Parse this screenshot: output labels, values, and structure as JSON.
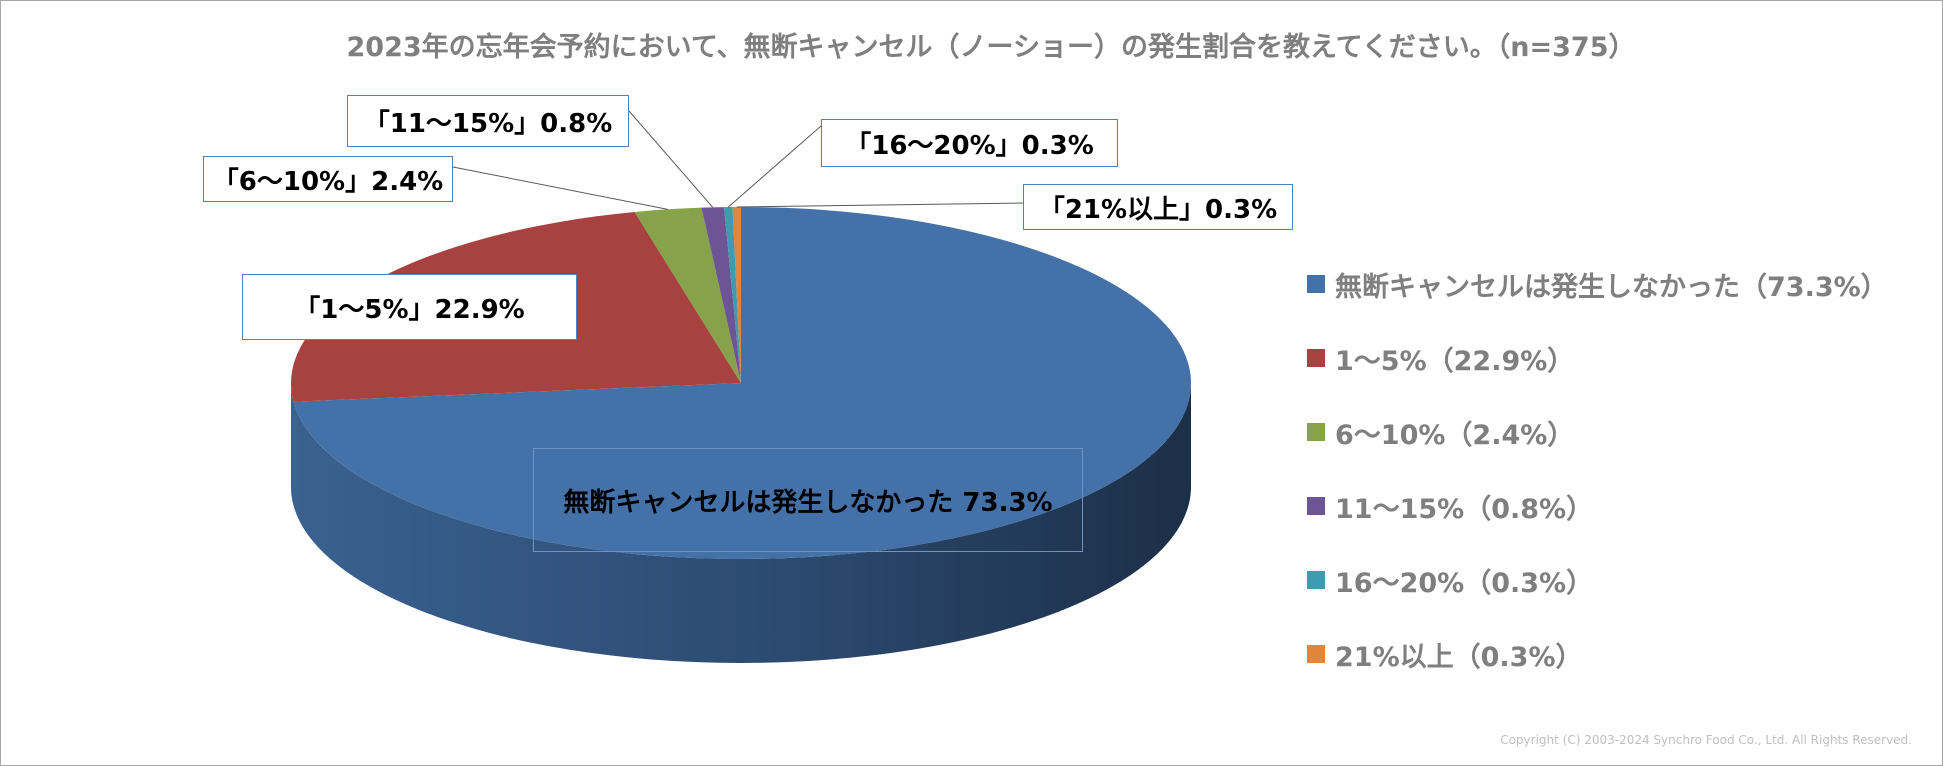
{
  "chart_data": {
    "type": "pie",
    "title": "2023年の忘年会予約において、無断キャンセル（ノーショー）の発生割合を教えてください。（n=375）",
    "slices": [
      {
        "label": "無断キャンセルは発生しなかった",
        "value": 73.3,
        "color": "#4472a8",
        "data_label": "無断キャンセルは発生しなかった 73.3%",
        "legend": "無断キャンセルは発生しなかった（73.3%）"
      },
      {
        "label": "1～5%",
        "value": 22.9,
        "color": "#a84240",
        "data_label": "「1～5%」22.9%",
        "legend": "1～5%（22.9%）"
      },
      {
        "label": "6～10%",
        "value": 2.4,
        "color": "#86a24a",
        "data_label": "「6～10%」2.4%",
        "legend": "6～10%（2.4%）"
      },
      {
        "label": "11～15%",
        "value": 0.8,
        "color": "#6c5592",
        "data_label": "「11～15%」0.8%",
        "legend": "11～15%（0.8%）"
      },
      {
        "label": "16～20%",
        "value": 0.3,
        "color": "#3f9bb0",
        "data_label": "「16～20%」0.3%",
        "legend": "16～20%（0.3%）"
      },
      {
        "label": "21%以上",
        "value": 0.3,
        "color": "#e0853a",
        "data_label": "「21%以上」0.3%",
        "legend": "21%以上（0.3%）"
      }
    ],
    "legend_position": "right"
  },
  "copyright": "Copyright (C) 2003-2024   Synchro Food Co., Ltd. All Rights Reserved."
}
